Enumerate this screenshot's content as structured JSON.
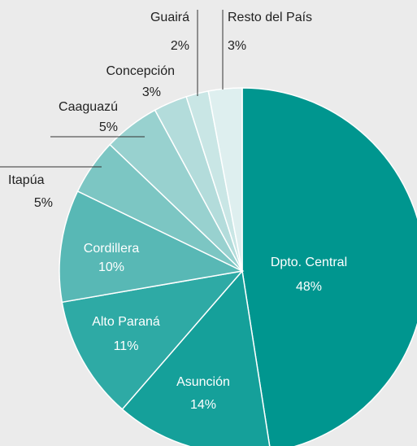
{
  "chart_data": {
    "type": "pie",
    "categories": [
      "Dpto. Central",
      "Asunción",
      "Alto Paraná",
      "Cordillera",
      "Itapúa",
      "Caaguazú",
      "Concepción",
      "Guairá",
      "Resto del País"
    ],
    "values": [
      48,
      14,
      11,
      10,
      5,
      5,
      3,
      2,
      3
    ],
    "value_labels": [
      "48%",
      "14%",
      "11%",
      "10%",
      "5%",
      "5%",
      "3%",
      "2%",
      "3%"
    ],
    "colors": [
      "#00968f",
      "#15a09a",
      "#2eaaa5",
      "#58b8b5",
      "#7cc6c3",
      "#98d1cf",
      "#b3dcdb",
      "#c9e6e5",
      "#deefef"
    ]
  }
}
